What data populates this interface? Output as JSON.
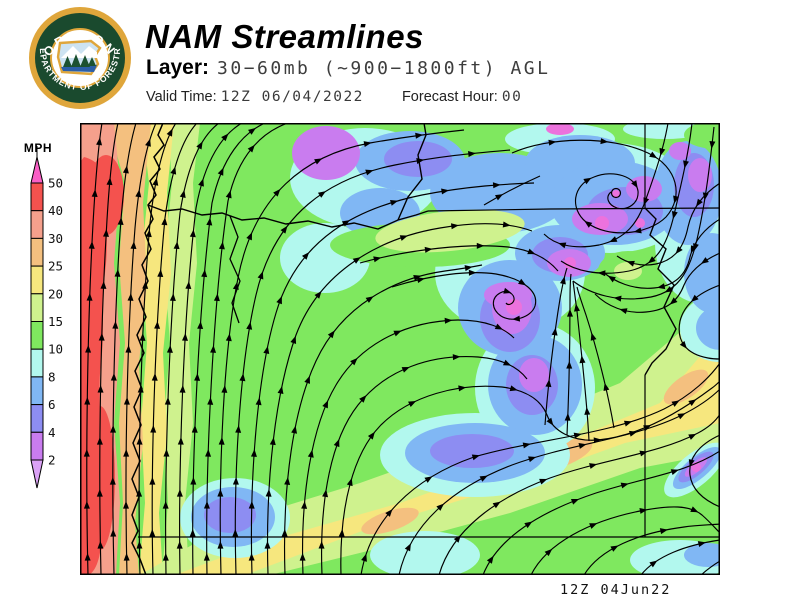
{
  "logo": {
    "text_top": "OREGON",
    "text_bottom": "DEPARTMENT OF FORESTRY",
    "ring_color": "#DFA63B",
    "disc_color": "#1A4A2E"
  },
  "header": {
    "title": "NAM Streamlines",
    "layer_label": "Layer:",
    "layer_value": "30−60mb (~900−1800ft) AGL",
    "valid_time_label": "Valid Time:",
    "valid_time_value": "12Z 06/04/2022",
    "forecast_hour_label": "Forecast Hour:",
    "forecast_hour_value": "00"
  },
  "colorbar": {
    "title": "MPH",
    "tick_labels": [
      "50",
      "40",
      "30",
      "25",
      "20",
      "15",
      "10",
      "8",
      "6",
      "4",
      "2"
    ],
    "band_colors": [
      "#F4524E",
      "#F5A08C",
      "#F4C07F",
      "#F6E77E",
      "#CFF28E",
      "#7FE85F",
      "#B2F8EE",
      "#80B7F4",
      "#8D8DF2",
      "#C97CEF"
    ],
    "over_color": "#F95FC6",
    "under_color": "#DBA2F6"
  },
  "map": {
    "caption": "12Z 04Jun22"
  },
  "chart_data": {
    "type": "streamline-map",
    "title": "NAM Streamlines",
    "layer": "30-60mb (~900-1800ft) AGL",
    "valid_time": "12Z 06/04/2022",
    "forecast_hour": "00",
    "region": "Oregon, USA with portions of Washington, Idaho, California and Nevada",
    "units": "MPH",
    "speed_bands": [
      {
        "range": "<2",
        "color": "#DBA2F6"
      },
      {
        "range": "2-4",
        "color": "#C97CEF"
      },
      {
        "range": "4-6",
        "color": "#8D8DF2"
      },
      {
        "range": "6-8",
        "color": "#80B7F4"
      },
      {
        "range": "8-10",
        "color": "#B2F8EE"
      },
      {
        "range": "10-15",
        "color": "#7FE85F"
      },
      {
        "range": "15-20",
        "color": "#CFF28E"
      },
      {
        "range": "20-25",
        "color": "#F6E77E"
      },
      {
        "range": "25-30",
        "color": "#F4C07F"
      },
      {
        "range": "30-40",
        "color": "#F5A08C"
      },
      {
        "range": "40-50",
        "color": "#F4524E"
      },
      {
        "range": ">50",
        "color": "#F95FC6"
      }
    ],
    "features": [
      "Strong northward coastal jet 30-50 MPH hugging the Oregon coast",
      "Speeds decrease inland: 25-30, 20-25, 15-20 bands parallel to coast",
      "Light winds 2-8 MPH over north-central and northeast Oregon",
      "Closed clockwise eddy/vortex in far northeast Oregon near the Washington border",
      "Secondary small eddy and a confluence zone in central-east Oregon",
      "SW-to-NE oriented 20-30 MPH jet band across southeast Oregon exiting the east edge",
      "Sharp shear streak of 2-8 MPH along the Idaho border in the southeast",
      "Flow is generally northward along the coast turning eastward across the north"
    ],
    "timestamp": "12Z 04Jun22"
  }
}
